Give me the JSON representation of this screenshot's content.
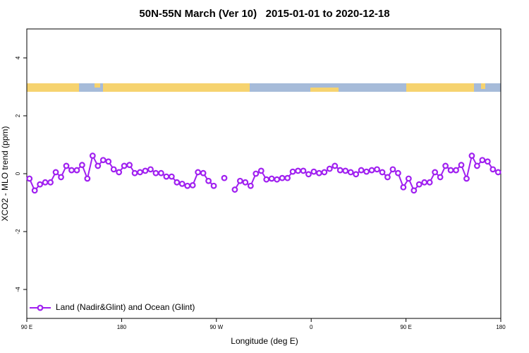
{
  "chart_data": {
    "type": "line",
    "title": "50N-55N March (Ver 10)   2015-01-01 to 2020-12-18",
    "xlabel": "Longitude (deg E)",
    "ylabel": "XCO2 - MLO trend (ppm)",
    "xlim": [
      90,
      540
    ],
    "ylim": [
      -5,
      5
    ],
    "xticks": [
      {
        "value": 90,
        "label": "90 E"
      },
      180,
      {
        "value": 270,
        "label": "90 W"
      },
      {
        "value": 360,
        "label": "0"
      },
      {
        "value": 450,
        "label": "90 E"
      },
      {
        "value": 540,
        "label": "180"
      }
    ],
    "yticks": [
      -4,
      -2,
      0,
      2,
      4
    ],
    "legend": "bottom left",
    "x": [
      92.5,
      97.5,
      102.5,
      107.5,
      112.5,
      117.5,
      122.5,
      127.5,
      132.5,
      137.5,
      142.5,
      147.5,
      152.5,
      157.5,
      162.5,
      167.5,
      172.5,
      177.5,
      182.5,
      187.5,
      192.5,
      197.5,
      202.5,
      207.5,
      212.5,
      217.5,
      222.5,
      227.5,
      232.5,
      237.5,
      242.5,
      247.5,
      252.5,
      257.5,
      262.5,
      267.5,
      272.5,
      277.5,
      282.5,
      287.5,
      292.5,
      297.5,
      302.5,
      307.5,
      312.5,
      317.5,
      322.5,
      327.5,
      332.5,
      337.5,
      342.5,
      347.5,
      352.5,
      357.5,
      362.5,
      367.5,
      372.5,
      377.5,
      382.5,
      387.5,
      392.5,
      397.5,
      402.5,
      407.5,
      412.5,
      417.5,
      422.5,
      427.5,
      432.5,
      437.5,
      442.5,
      447.5,
      452.5,
      457.5,
      462.5,
      467.5,
      472.5,
      477.5,
      482.5,
      487.5,
      492.5,
      497.5,
      502.5,
      507.5,
      512.5,
      517.5,
      522.5,
      527.5,
      532.5,
      537.5
    ],
    "series": [
      {
        "name": "Land (Nadir&Glint) and Ocean (Glint)",
        "color": "#a020f0",
        "values": [
          -0.17,
          -0.58,
          -0.37,
          -0.3,
          -0.3,
          0.05,
          -0.12,
          0.27,
          0.12,
          0.12,
          0.3,
          -0.17,
          0.62,
          0.27,
          0.47,
          0.42,
          0.15,
          0.05,
          0.27,
          0.3,
          0.02,
          0.05,
          0.1,
          0.15,
          0.02,
          0.02,
          -0.1,
          -0.1,
          -0.3,
          -0.35,
          -0.42,
          -0.4,
          0.05,
          0.02,
          -0.25,
          -0.42,
          null,
          -0.15,
          null,
          -0.55,
          -0.25,
          -0.3,
          -0.42,
          0,
          0.1,
          -0.2,
          -0.17,
          -0.2,
          -0.15,
          -0.15,
          0.07,
          0.1,
          0.1,
          -0.02,
          0.07,
          0.02,
          0.05,
          0.17,
          0.27,
          0.12,
          0.1,
          0.05,
          -0.02,
          0.12,
          0.07,
          0.12,
          0.15,
          0.05,
          -0.12,
          0.15,
          0.02,
          -0.47,
          -0.17,
          -0.58,
          -0.37,
          -0.3,
          -0.3,
          0.05,
          -0.12,
          0.27,
          0.12,
          0.12,
          0.3,
          -0.17,
          0.62,
          0.27,
          0.47,
          0.42,
          0.15,
          0.05
        ]
      }
    ]
  }
}
